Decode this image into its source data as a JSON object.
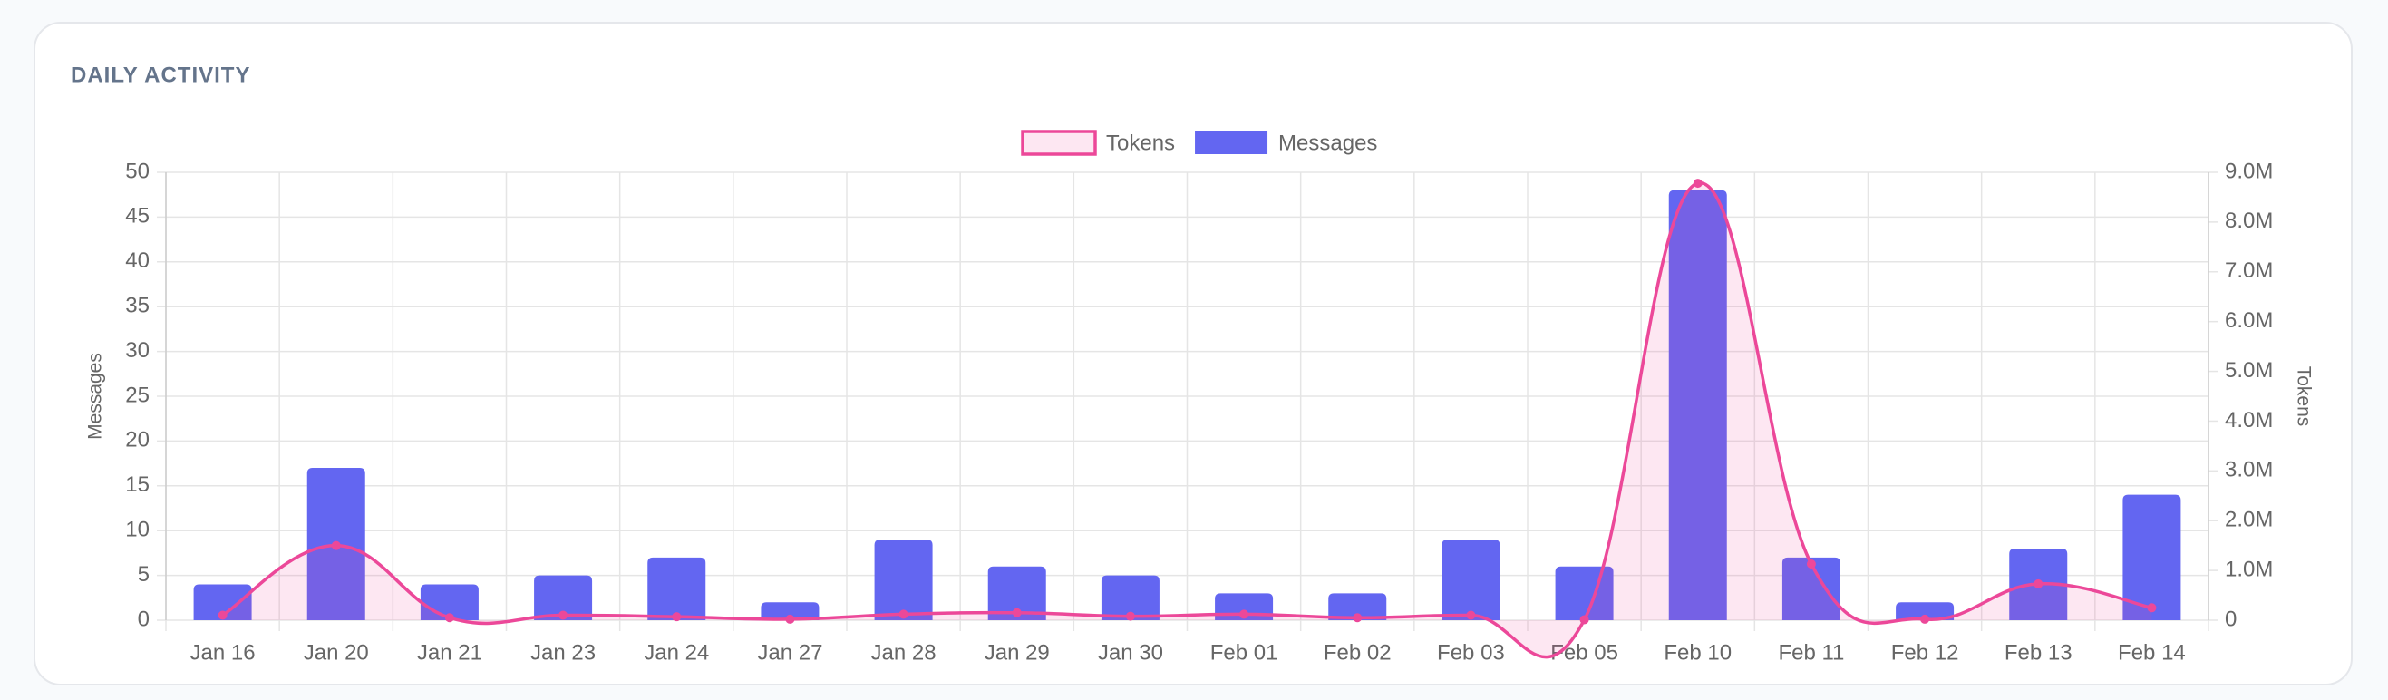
{
  "chart_data": {
    "type": "bar",
    "title": "DAILY ACTIVITY",
    "categories": [
      "Jan 16",
      "Jan 20",
      "Jan 21",
      "Jan 23",
      "Jan 24",
      "Jan 27",
      "Jan 28",
      "Jan 29",
      "Jan 30",
      "Feb 01",
      "Feb 02",
      "Feb 03",
      "Feb 05",
      "Feb 10",
      "Feb 11",
      "Feb 12",
      "Feb 13",
      "Feb 14"
    ],
    "series": [
      {
        "name": "Tokens",
        "type": "line",
        "color": "#ec4899",
        "axis": "y2",
        "values": [
          100000,
          1500000,
          50000,
          100000,
          70000,
          20000,
          120000,
          150000,
          80000,
          120000,
          50000,
          100000,
          10000,
          8780000,
          1130000,
          20000,
          730000,
          250000
        ]
      },
      {
        "name": "Messages",
        "type": "bar",
        "color": "#6366f1",
        "values": [
          4,
          17,
          4,
          5,
          7,
          2,
          9,
          6,
          5,
          3,
          3,
          9,
          6,
          48,
          7,
          2,
          8,
          14
        ]
      }
    ],
    "y_label": "Messages",
    "y2_label": "Tokens",
    "ylim": [
      0,
      50
    ],
    "yticks": [
      0,
      5,
      10,
      15,
      20,
      25,
      30,
      35,
      40,
      45,
      50
    ],
    "y2lim": [
      0,
      9000000
    ],
    "y2ticks": [
      0,
      {
        "value": 1000000,
        "label": "1.0M"
      },
      {
        "value": 2000000,
        "label": "2.0M"
      },
      {
        "value": 3000000,
        "label": "3.0M"
      },
      {
        "value": 4000000,
        "label": "4.0M"
      },
      {
        "value": 5000000,
        "label": "5.0M"
      },
      {
        "value": 6000000,
        "label": "6.0M"
      },
      {
        "value": 7000000,
        "label": "7.0M"
      },
      {
        "value": 8000000,
        "label": "8.0M"
      },
      {
        "value": 9000000,
        "label": "9.0M"
      }
    ],
    "grid": true
  }
}
